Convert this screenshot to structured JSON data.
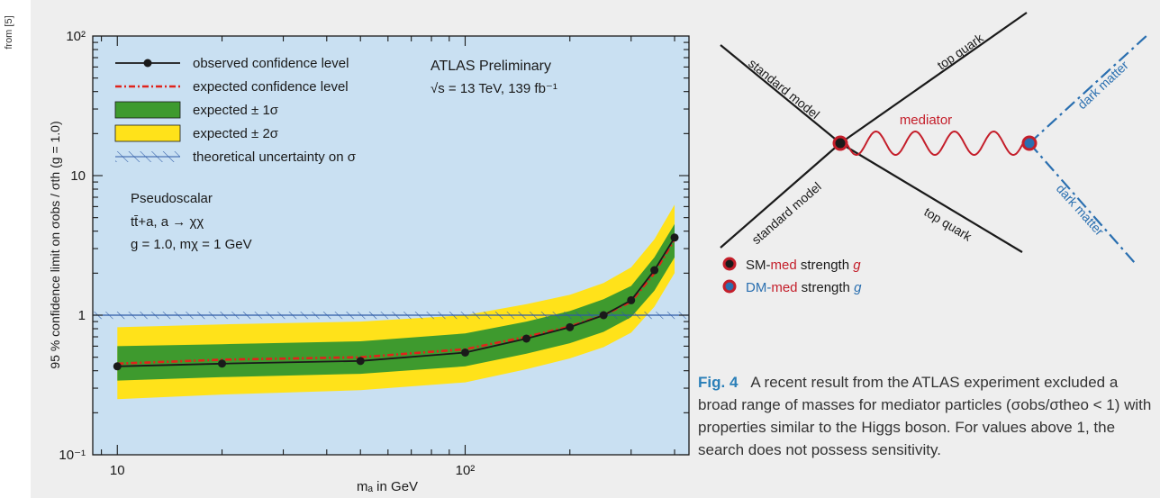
{
  "source_credit": "from [5]",
  "chart_data": {
    "type": "line",
    "xscale": "log",
    "yscale": "log",
    "xlim": [
      8.5,
      440
    ],
    "ylim": [
      0.1,
      100
    ],
    "x_ticks": [
      {
        "value": 10,
        "label": "10"
      },
      {
        "value": 100,
        "label": "10²"
      }
    ],
    "y_ticks": [
      {
        "value": 0.1,
        "label": "10⁻¹"
      },
      {
        "value": 1,
        "label": "1"
      },
      {
        "value": 10,
        "label": "10"
      },
      {
        "value": 100,
        "label": "10²"
      }
    ],
    "xlabel": "mₐ in GeV",
    "ylabel": "95 % confidence limit on σobs / σth (g = 1.0)",
    "reference_line": 1,
    "series": [
      {
        "name": "observed confidence level",
        "x": [
          10,
          20,
          50,
          100,
          150,
          200,
          250,
          300,
          350,
          400
        ],
        "y": [
          0.43,
          0.45,
          0.47,
          0.54,
          0.68,
          0.82,
          1.0,
          1.28,
          2.1,
          3.6
        ]
      },
      {
        "name": "expected confidence level",
        "x": [
          10,
          20,
          50,
          100,
          150,
          200,
          250,
          300,
          350,
          400
        ],
        "y": [
          0.45,
          0.48,
          0.5,
          0.57,
          0.7,
          0.83,
          1.0,
          1.25,
          2.0,
          3.5
        ]
      }
    ],
    "band_1sigma": {
      "name": "expected ± 1σ",
      "x": [
        10,
        20,
        50,
        100,
        150,
        200,
        250,
        300,
        350,
        400
      ],
      "lower": [
        0.34,
        0.36,
        0.38,
        0.43,
        0.53,
        0.63,
        0.76,
        0.97,
        1.5,
        2.6
      ],
      "upper": [
        0.6,
        0.62,
        0.65,
        0.74,
        0.9,
        1.07,
        1.3,
        1.62,
        2.6,
        4.5
      ]
    },
    "band_2sigma": {
      "name": "expected ± 2σ",
      "x": [
        10,
        20,
        50,
        100,
        150,
        200,
        250,
        300,
        350,
        400
      ],
      "lower": [
        0.25,
        0.27,
        0.29,
        0.33,
        0.41,
        0.49,
        0.59,
        0.75,
        1.15,
        2.0
      ],
      "upper": [
        0.82,
        0.86,
        0.9,
        1.0,
        1.2,
        1.4,
        1.7,
        2.2,
        3.5,
        6.2
      ]
    },
    "theory_band": {
      "name": "theoretical uncertainty on σ",
      "lower": 0.94,
      "upper": 1.06
    },
    "legend": {
      "position": "top-left",
      "items": [
        {
          "label": "observed confidence level",
          "kind": "line-dot"
        },
        {
          "label": "expected confidence level",
          "kind": "dashdot"
        },
        {
          "label": "expected ± 1σ",
          "kind": "box-green"
        },
        {
          "label": "expected ± 2σ",
          "kind": "box-yellow"
        },
        {
          "label": "theoretical uncertainty on σ",
          "kind": "hatch"
        }
      ]
    },
    "annotations": {
      "experiment": "ATLAS Preliminary",
      "energy": "√s = 13 TeV, 139 fb⁻¹",
      "model": "Pseudoscalar",
      "process": "tt̄+a,  a → χχ",
      "params": "g = 1.0,  mχ = 1 GeV"
    },
    "colors": {
      "plot_bg": "#c9e0f2",
      "band_1sigma": "#3e9a2e",
      "band_2sigma": "#ffe21a",
      "observed": "#1a1a1a",
      "expected": "#e0231c",
      "theory": "#2d5aa6"
    }
  },
  "diagram": {
    "labels": {
      "sm_top": "standard model",
      "sm_bottom": "standard model",
      "top_quark_upper": "top quark",
      "top_quark_lower": "top quark",
      "mediator": "mediator",
      "dm_upper": "dark matter",
      "dm_lower": "dark matter"
    },
    "legend": [
      {
        "prefix": "SM-",
        "mid": "med",
        "suffix": " strength ",
        "g": "g"
      },
      {
        "prefix": "DM-",
        "mid": "med",
        "suffix": " strength ",
        "g": "g"
      }
    ],
    "colors": {
      "sm": "#c41e2a",
      "dm": "#2a6fb0",
      "mediator": "#c41e2a",
      "dm_line": "#2a6fb0"
    }
  },
  "caption": {
    "figure": "Fig. 4",
    "text": "A recent result from the ATLAS experiment excluded a broad range of masses for mediator particles (σobs/σtheo < 1) with properties similar to the Higgs boson. For values above 1, the search does not possess sensitivity."
  }
}
